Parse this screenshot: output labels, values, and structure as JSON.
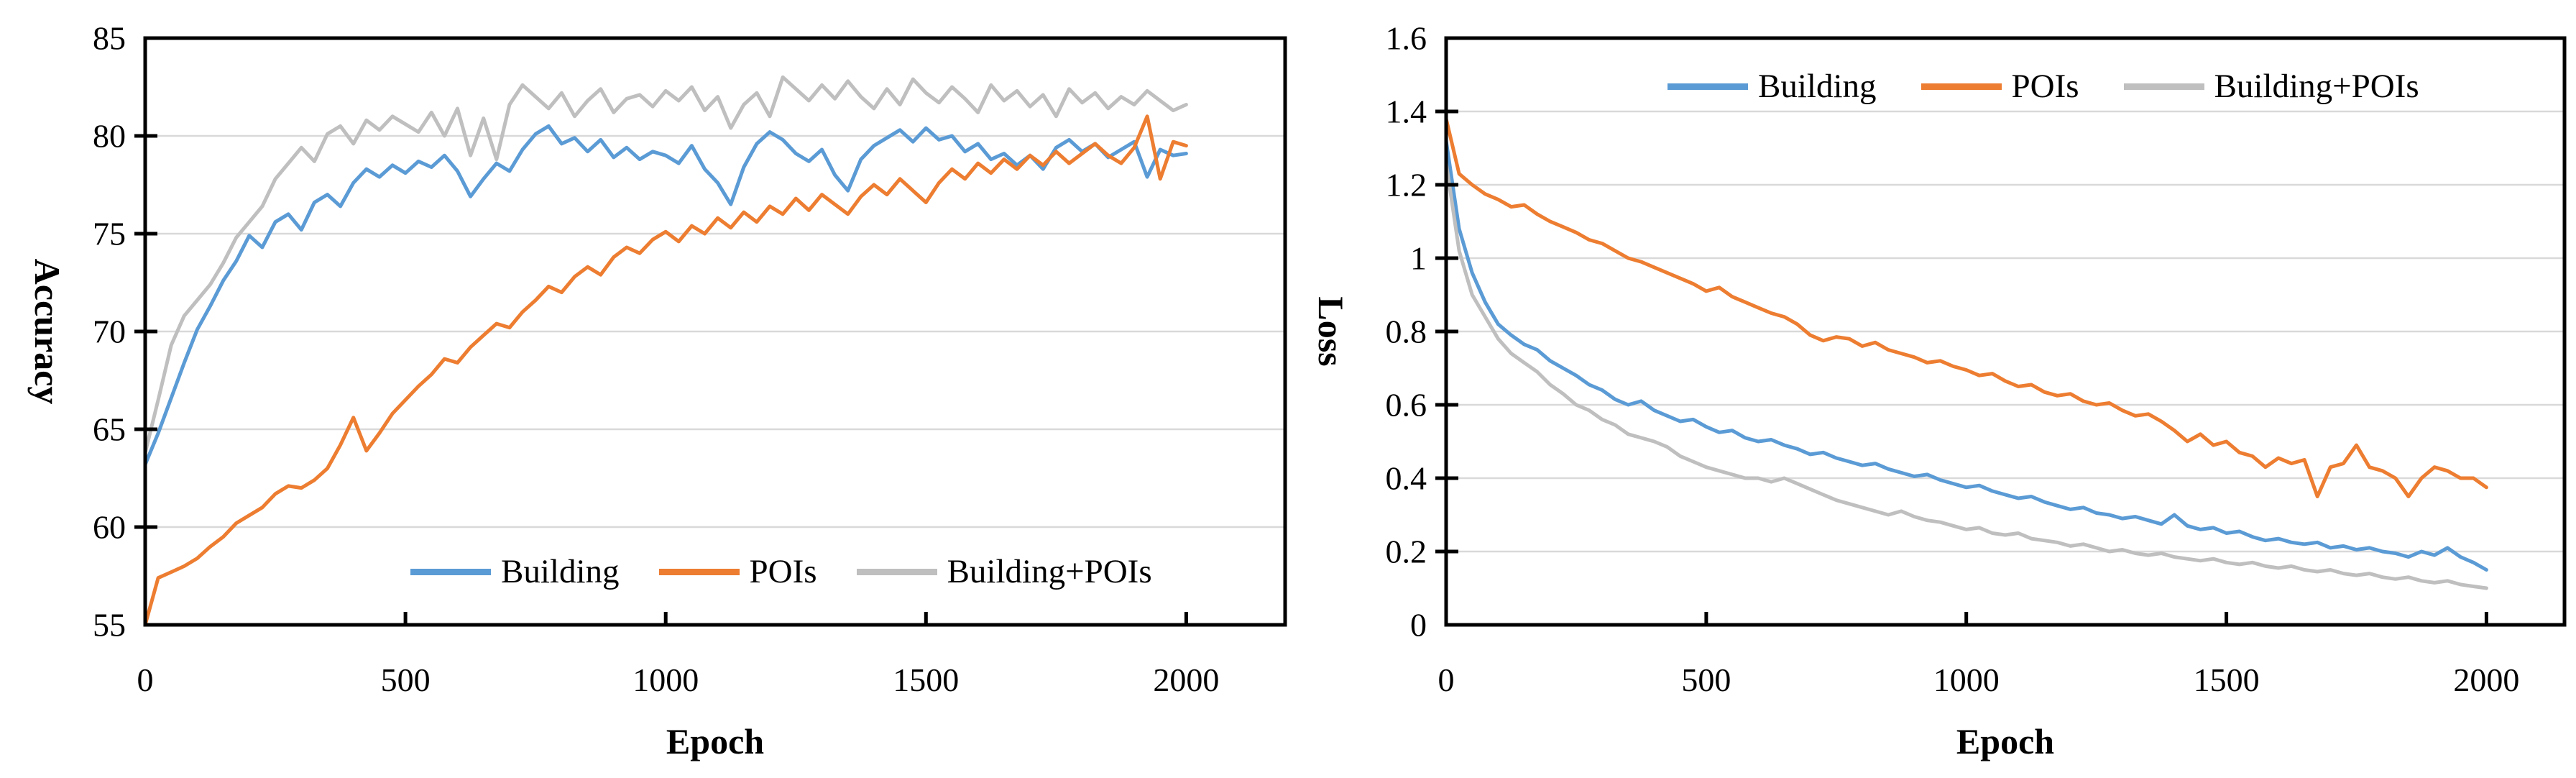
{
  "figure": {
    "background": "#FFFFFF"
  },
  "colors": {
    "building": "#5B9BD5",
    "pois": "#ED7D31",
    "building_pois": "#BFBFBF",
    "gridline": "#D9D9D9",
    "axis": "#000000",
    "text": "#000000"
  },
  "chart_data": [
    {
      "id": "accuracy",
      "type": "line",
      "title": "",
      "xlabel": "Epoch",
      "ylabel": "Accuracy",
      "xlim": [
        0,
        2190
      ],
      "ylim": [
        55,
        85
      ],
      "xticks": [
        0,
        500,
        1000,
        1500,
        2000
      ],
      "yticks": [
        55,
        60,
        65,
        70,
        75,
        80,
        85
      ],
      "grid": "horizontal",
      "legend_position": "inside-bottom-center",
      "x_start": 0,
      "x_step": 25,
      "series": [
        {
          "name": "Building",
          "color": "#5B9BD5",
          "values": [
            63.2,
            64.8,
            66.6,
            68.4,
            70.1,
            71.3,
            72.6,
            73.6,
            74.9,
            74.3,
            75.6,
            76.0,
            75.2,
            76.6,
            77.0,
            76.4,
            77.6,
            78.3,
            77.9,
            78.5,
            78.1,
            78.7,
            78.4,
            79.0,
            78.2,
            76.9,
            77.8,
            78.6,
            78.2,
            79.3,
            80.1,
            80.5,
            79.6,
            79.9,
            79.2,
            79.8,
            78.9,
            79.4,
            78.8,
            79.2,
            79.0,
            78.6,
            79.5,
            78.3,
            77.6,
            76.5,
            78.4,
            79.6,
            80.2,
            79.8,
            79.1,
            78.7,
            79.3,
            78.0,
            77.2,
            78.8,
            79.5,
            79.9,
            80.3,
            79.7,
            80.4,
            79.8,
            80.0,
            79.2,
            79.6,
            78.8,
            79.1,
            78.5,
            79.0,
            78.3,
            79.4,
            79.8,
            79.2,
            79.6,
            78.9,
            79.3,
            79.7,
            77.9,
            79.3,
            79.0,
            79.1
          ]
        },
        {
          "name": "POIs",
          "color": "#ED7D31",
          "values": [
            55.0,
            57.4,
            57.7,
            58.0,
            58.4,
            59.0,
            59.5,
            60.2,
            60.6,
            61.0,
            61.7,
            62.1,
            62.0,
            62.4,
            63.0,
            64.2,
            65.6,
            63.9,
            64.8,
            65.8,
            66.5,
            67.2,
            67.8,
            68.6,
            68.4,
            69.2,
            69.8,
            70.4,
            70.2,
            71.0,
            71.6,
            72.3,
            72.0,
            72.8,
            73.3,
            72.9,
            73.8,
            74.3,
            74.0,
            74.7,
            75.1,
            74.6,
            75.4,
            75.0,
            75.8,
            75.3,
            76.1,
            75.6,
            76.4,
            76.0,
            76.8,
            76.2,
            77.0,
            76.5,
            76.0,
            76.9,
            77.5,
            77.0,
            77.8,
            77.2,
            76.6,
            77.6,
            78.3,
            77.8,
            78.6,
            78.1,
            78.8,
            78.3,
            79.0,
            78.5,
            79.2,
            78.6,
            79.1,
            79.6,
            79.0,
            78.6,
            79.4,
            81.0,
            77.8,
            79.7,
            79.5
          ]
        },
        {
          "name": "Building+POIs",
          "color": "#BFBFBF",
          "values": [
            63.8,
            66.5,
            69.3,
            70.8,
            71.6,
            72.4,
            73.5,
            74.8,
            75.6,
            76.4,
            77.8,
            78.6,
            79.4,
            78.7,
            80.1,
            80.5,
            79.6,
            80.8,
            80.3,
            81.0,
            80.6,
            80.2,
            81.2,
            80.0,
            81.4,
            79.0,
            80.9,
            78.8,
            81.6,
            82.6,
            82.0,
            81.4,
            82.2,
            81.0,
            81.8,
            82.4,
            81.2,
            81.9,
            82.1,
            81.5,
            82.3,
            81.8,
            82.5,
            81.3,
            82.0,
            80.4,
            81.6,
            82.2,
            81.0,
            83.0,
            82.4,
            81.8,
            82.6,
            81.9,
            82.8,
            82.0,
            81.4,
            82.4,
            81.6,
            82.9,
            82.2,
            81.7,
            82.5,
            81.9,
            81.2,
            82.6,
            81.8,
            82.3,
            81.5,
            82.1,
            81.0,
            82.4,
            81.7,
            82.2,
            81.4,
            82.0,
            81.6,
            82.3,
            81.8,
            81.3,
            81.6
          ]
        }
      ]
    },
    {
      "id": "loss",
      "type": "line",
      "title": "",
      "xlabel": "Epoch",
      "ylabel": "Loss",
      "xlim": [
        0,
        2150
      ],
      "ylim": [
        0,
        1.6
      ],
      "xticks": [
        0,
        500,
        1000,
        1500,
        2000
      ],
      "yticks": [
        0,
        0.2,
        0.4,
        0.6,
        0.8,
        1,
        1.2,
        1.4,
        1.6
      ],
      "grid": "horizontal",
      "legend_position": "inside-top-center",
      "x_start": 0,
      "x_step": 25,
      "series": [
        {
          "name": "Building",
          "color": "#5B9BD5",
          "values": [
            1.32,
            1.08,
            0.96,
            0.88,
            0.82,
            0.79,
            0.765,
            0.75,
            0.72,
            0.7,
            0.68,
            0.655,
            0.64,
            0.615,
            0.6,
            0.61,
            0.585,
            0.57,
            0.555,
            0.56,
            0.54,
            0.525,
            0.53,
            0.51,
            0.5,
            0.505,
            0.49,
            0.48,
            0.465,
            0.47,
            0.455,
            0.445,
            0.435,
            0.44,
            0.425,
            0.415,
            0.405,
            0.41,
            0.395,
            0.385,
            0.375,
            0.38,
            0.365,
            0.355,
            0.345,
            0.35,
            0.335,
            0.325,
            0.315,
            0.32,
            0.305,
            0.3,
            0.29,
            0.295,
            0.285,
            0.275,
            0.3,
            0.27,
            0.26,
            0.265,
            0.25,
            0.255,
            0.24,
            0.23,
            0.235,
            0.225,
            0.22,
            0.225,
            0.21,
            0.215,
            0.205,
            0.21,
            0.2,
            0.195,
            0.185,
            0.2,
            0.19,
            0.21,
            0.185,
            0.17,
            0.15
          ]
        },
        {
          "name": "POIs",
          "color": "#ED7D31",
          "values": [
            1.38,
            1.23,
            1.2,
            1.175,
            1.16,
            1.14,
            1.145,
            1.12,
            1.1,
            1.085,
            1.07,
            1.05,
            1.04,
            1.02,
            1.0,
            0.99,
            0.975,
            0.96,
            0.945,
            0.93,
            0.91,
            0.92,
            0.895,
            0.88,
            0.865,
            0.85,
            0.84,
            0.82,
            0.79,
            0.775,
            0.785,
            0.78,
            0.76,
            0.77,
            0.75,
            0.74,
            0.73,
            0.715,
            0.72,
            0.705,
            0.695,
            0.68,
            0.685,
            0.665,
            0.65,
            0.655,
            0.635,
            0.625,
            0.63,
            0.61,
            0.6,
            0.605,
            0.585,
            0.57,
            0.575,
            0.555,
            0.53,
            0.5,
            0.52,
            0.49,
            0.5,
            0.47,
            0.46,
            0.43,
            0.455,
            0.44,
            0.45,
            0.35,
            0.43,
            0.44,
            0.49,
            0.43,
            0.42,
            0.4,
            0.35,
            0.4,
            0.43,
            0.42,
            0.4,
            0.4,
            0.375
          ]
        },
        {
          "name": "Building+POIs",
          "color": "#BFBFBF",
          "values": [
            1.26,
            1.02,
            0.9,
            0.84,
            0.78,
            0.74,
            0.715,
            0.69,
            0.655,
            0.63,
            0.6,
            0.585,
            0.56,
            0.545,
            0.52,
            0.51,
            0.5,
            0.485,
            0.46,
            0.445,
            0.43,
            0.42,
            0.41,
            0.4,
            0.4,
            0.39,
            0.4,
            0.385,
            0.37,
            0.355,
            0.34,
            0.33,
            0.32,
            0.31,
            0.3,
            0.31,
            0.295,
            0.285,
            0.28,
            0.27,
            0.26,
            0.265,
            0.25,
            0.245,
            0.25,
            0.235,
            0.23,
            0.225,
            0.215,
            0.22,
            0.21,
            0.2,
            0.205,
            0.195,
            0.19,
            0.195,
            0.185,
            0.18,
            0.175,
            0.18,
            0.17,
            0.165,
            0.17,
            0.16,
            0.155,
            0.16,
            0.15,
            0.145,
            0.15,
            0.14,
            0.135,
            0.14,
            0.13,
            0.125,
            0.13,
            0.12,
            0.115,
            0.12,
            0.11,
            0.105,
            0.1
          ]
        }
      ]
    }
  ]
}
